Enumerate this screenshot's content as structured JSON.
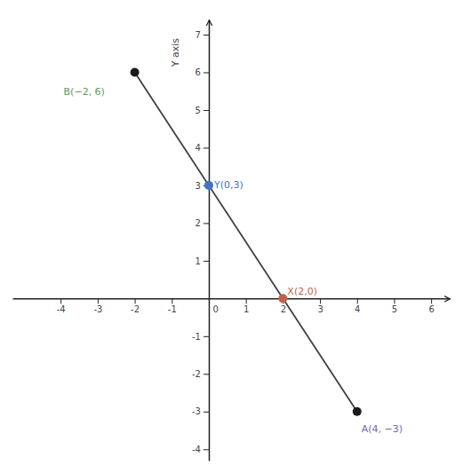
{
  "chart_data": {
    "type": "scatter",
    "y_label": "Y axis",
    "xlim": [
      -5.3,
      6.5
    ],
    "ylim": [
      -4.3,
      7.4
    ],
    "xticks": [
      -4,
      -3,
      -2,
      -1,
      0,
      1,
      2,
      3,
      4,
      5,
      6
    ],
    "yticks": [
      -4,
      -3,
      -2,
      -1,
      1,
      2,
      3,
      4,
      5,
      6,
      7
    ],
    "grid": false,
    "series": [
      {
        "type": "line",
        "color": "#404040",
        "x": [
          -2,
          4
        ],
        "values": [
          6,
          -3
        ]
      },
      {
        "type": "scatter",
        "marker": "circle",
        "colors": [
          "#1a1a1a",
          "#1a1a1a",
          "#4472c4",
          "#c0614a"
        ],
        "x": [
          4,
          -2,
          0,
          2
        ],
        "values": [
          -3,
          6,
          3,
          0
        ]
      }
    ],
    "annotations": [
      {
        "text": "A(4, −3)",
        "x": 4,
        "y": -3,
        "color": "#6b6baa"
      },
      {
        "text": "B(−2, 6)",
        "x": -2,
        "y": 6,
        "color": "#5a9a5a"
      },
      {
        "text": "Y(0,3)",
        "x": 0,
        "y": 3,
        "color": "#4472c4"
      },
      {
        "text": "X(2,0)",
        "x": 2,
        "y": 0,
        "color": "#c0614a"
      }
    ]
  }
}
